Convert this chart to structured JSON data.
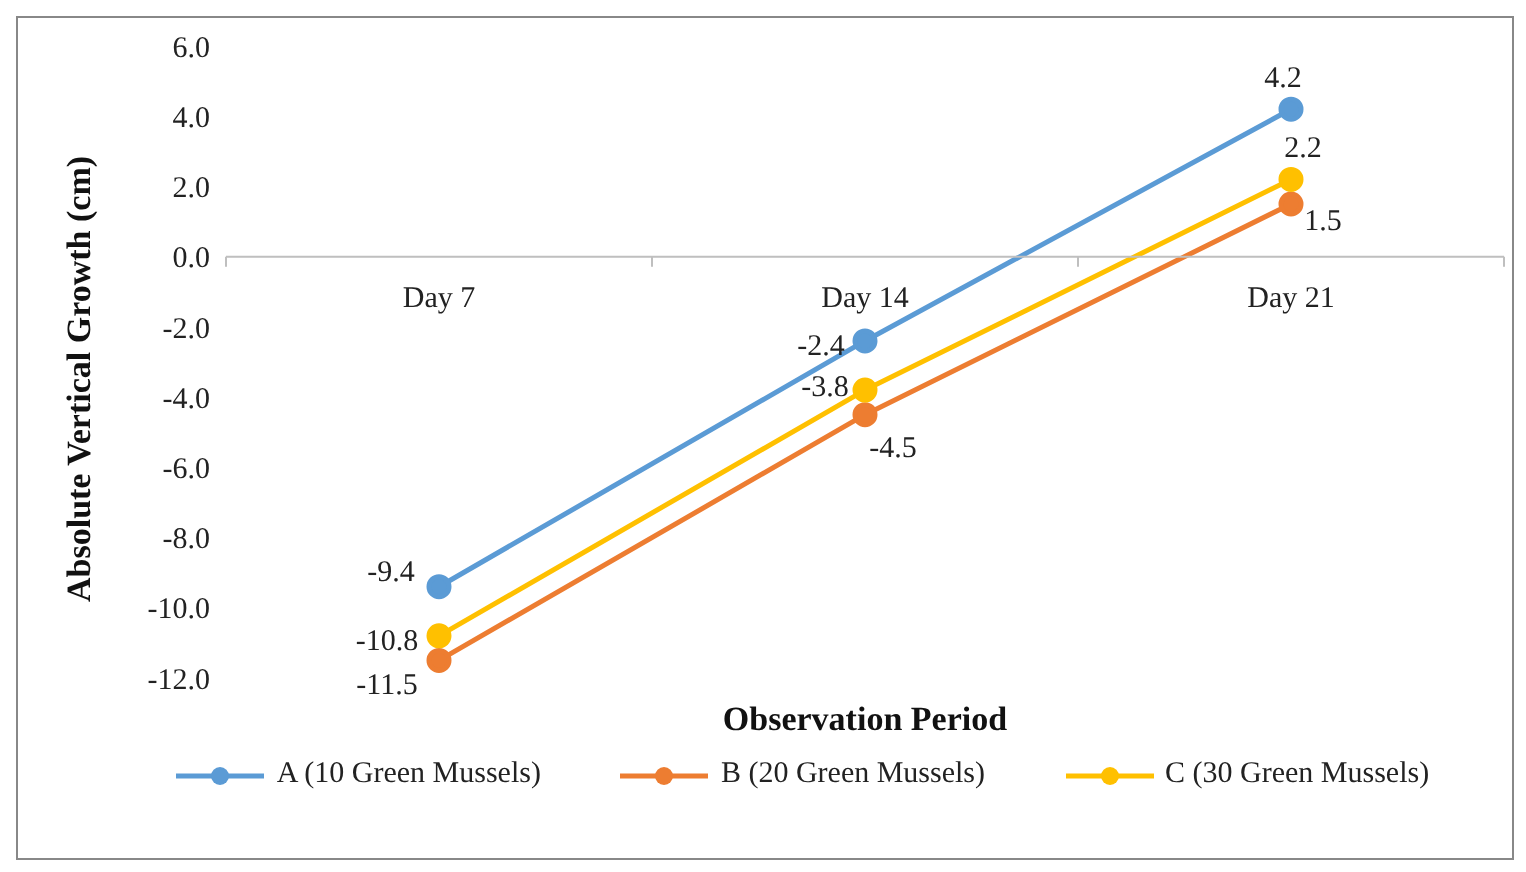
{
  "chart_data": {
    "type": "line",
    "xlabel": "Observation Period",
    "ylabel": "Absolute Vertical Growth (cm)",
    "categories": [
      "Day 7",
      "Day 14",
      "Day 21"
    ],
    "series": [
      {
        "name": "A (10 Green Mussels)",
        "color": "#5b9bd5",
        "values": [
          -9.4,
          -2.4,
          4.2
        ]
      },
      {
        "name": "B (20 Green Mussels)",
        "color": "#ed7d31",
        "values": [
          -11.5,
          -4.5,
          1.5
        ]
      },
      {
        "name": "C (30 Green Mussels)",
        "color": "#ffc000",
        "values": [
          -10.8,
          -3.8,
          2.2
        ]
      }
    ],
    "ylim": [
      -12,
      6
    ],
    "yticks": [
      {
        "value": -12,
        "label": "-12.0"
      },
      {
        "value": -10,
        "label": "-10.0"
      },
      {
        "value": -8,
        "label": "-8.0"
      },
      {
        "value": -6,
        "label": "-6.0"
      },
      {
        "value": -4,
        "label": "-4.0"
      },
      {
        "value": -2,
        "label": "-2.0"
      },
      {
        "value": 0,
        "label": "0.0"
      },
      {
        "value": 2,
        "label": "2.0"
      },
      {
        "value": 4,
        "label": "4.0"
      },
      {
        "value": 6,
        "label": "6.0"
      }
    ],
    "grid": false,
    "legend": "bottom",
    "marker": "circle",
    "line_style": "solid",
    "data_labels": true
  }
}
